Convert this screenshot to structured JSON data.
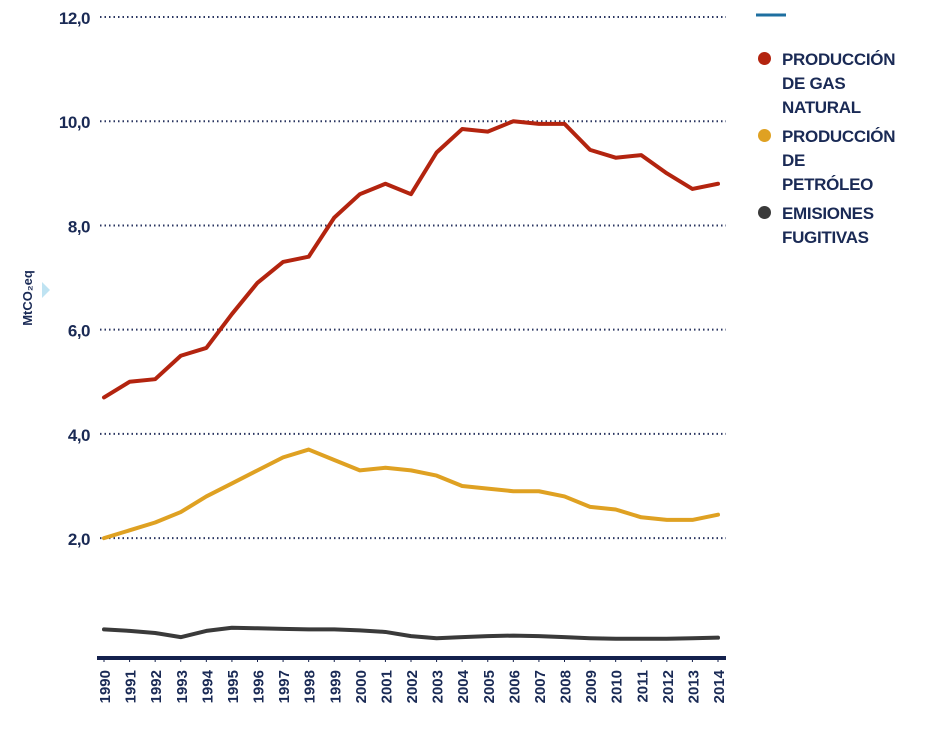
{
  "chart_data": {
    "type": "line",
    "y_label": "MtCO₂eq",
    "x": [
      1990,
      1991,
      1992,
      1993,
      1994,
      1995,
      1996,
      1997,
      1998,
      1999,
      2000,
      2001,
      2002,
      2003,
      2004,
      2005,
      2006,
      2007,
      2008,
      2009,
      2010,
      2011,
      2012,
      2013,
      2014
    ],
    "xlim": [
      1990,
      2014
    ],
    "ylim": [
      -0.3,
      12
    ],
    "yticks": [
      {
        "value": 2,
        "label": "2,0"
      },
      {
        "value": 4,
        "label": "4,0"
      },
      {
        "value": 6,
        "label": "6,0"
      },
      {
        "value": 8,
        "label": "8,0"
      },
      {
        "value": 10,
        "label": "10,0"
      },
      {
        "value": 12,
        "label": "12,0"
      }
    ],
    "grid": true,
    "legend": "right",
    "series": [
      {
        "name": "PRODUCCIÓN\nDE GAS NATURAL",
        "color": "#b3240f",
        "values": [
          4.7,
          5.0,
          5.05,
          5.5,
          5.65,
          6.3,
          6.9,
          7.3,
          7.4,
          8.15,
          8.6,
          8.8,
          8.6,
          9.4,
          9.85,
          9.8,
          10.0,
          9.95,
          9.95,
          9.45,
          9.3,
          9.35,
          9.0,
          8.7,
          8.8
        ]
      },
      {
        "name": "PRODUCCIÓN\nDE PETRÓLEO",
        "color": "#dfa122",
        "values": [
          2.0,
          2.15,
          2.3,
          2.5,
          2.8,
          3.05,
          3.3,
          3.55,
          3.7,
          3.5,
          3.3,
          3.35,
          3.3,
          3.2,
          3.0,
          2.95,
          2.9,
          2.9,
          2.8,
          2.6,
          2.55,
          2.4,
          2.35,
          2.35,
          2.45
        ]
      },
      {
        "name": "EMISIONES\nFUGITIVAS",
        "color": "#3a3a3a",
        "values": [
          0.25,
          0.22,
          0.18,
          0.1,
          0.22,
          0.28,
          0.27,
          0.26,
          0.25,
          0.25,
          0.23,
          0.2,
          0.12,
          0.08,
          0.1,
          0.12,
          0.13,
          0.12,
          0.1,
          0.08,
          0.07,
          0.07,
          0.07,
          0.08,
          0.09
        ]
      }
    ]
  }
}
